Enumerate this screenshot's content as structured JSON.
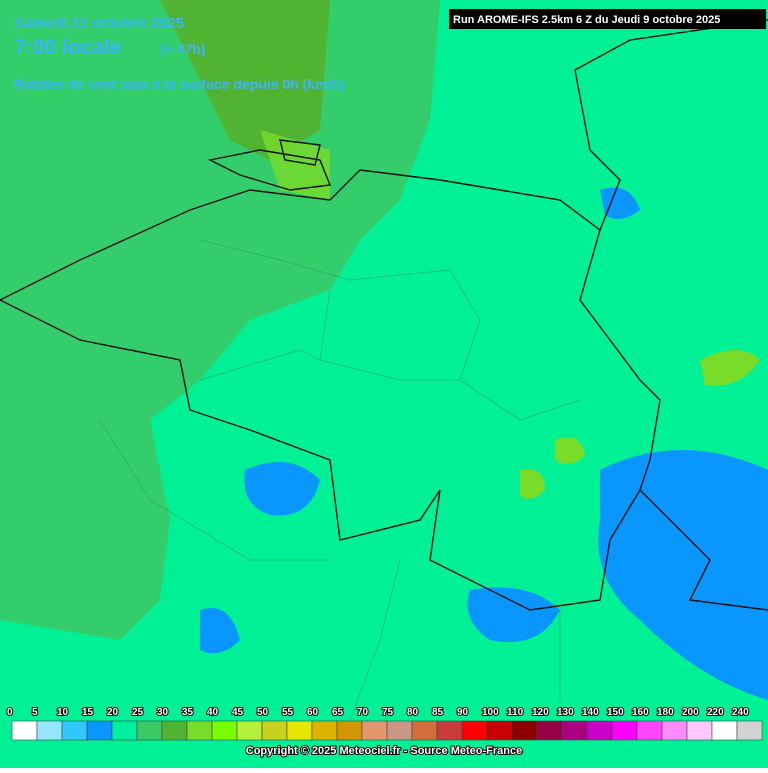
{
  "header": {
    "date": "Samedi 11 octobre 2025",
    "time": "7:00 locale",
    "lead": "(+ 47h)",
    "title": "Rafales de vent max à la surface depuis 0h (km/h)",
    "run": "Run AROME-IFS 2.5km 6 Z du Jeudi 9 octobre 2025"
  },
  "legend": {
    "labels": [
      0,
      5,
      10,
      15,
      20,
      25,
      30,
      35,
      40,
      45,
      50,
      55,
      60,
      65,
      70,
      75,
      80,
      85,
      90,
      100,
      110,
      120,
      130,
      140,
      150,
      160,
      180,
      200,
      220,
      240
    ],
    "colors": [
      "#ffffff",
      "#96e6ff",
      "#32c8ff",
      "#0a96ff",
      "#00f0a0",
      "#3cc864",
      "#50b432",
      "#78dc28",
      "#78ff00",
      "#b4f03c",
      "#c8d21e",
      "#e6e600",
      "#dcb400",
      "#d29600",
      "#e6966e",
      "#c89682",
      "#d26e3c",
      "#c83c3c",
      "#ff0000",
      "#c80000",
      "#8c0000",
      "#960046",
      "#aa0082",
      "#c800c8",
      "#ff00ff",
      "#ff46ff",
      "#ff8cff",
      "#ffc8ff",
      "#ffffff",
      "#d2d2d2"
    ]
  },
  "footer": {
    "copyright": "Copyright © 2025 Meteociel.fr - Source Meteo-France"
  }
}
